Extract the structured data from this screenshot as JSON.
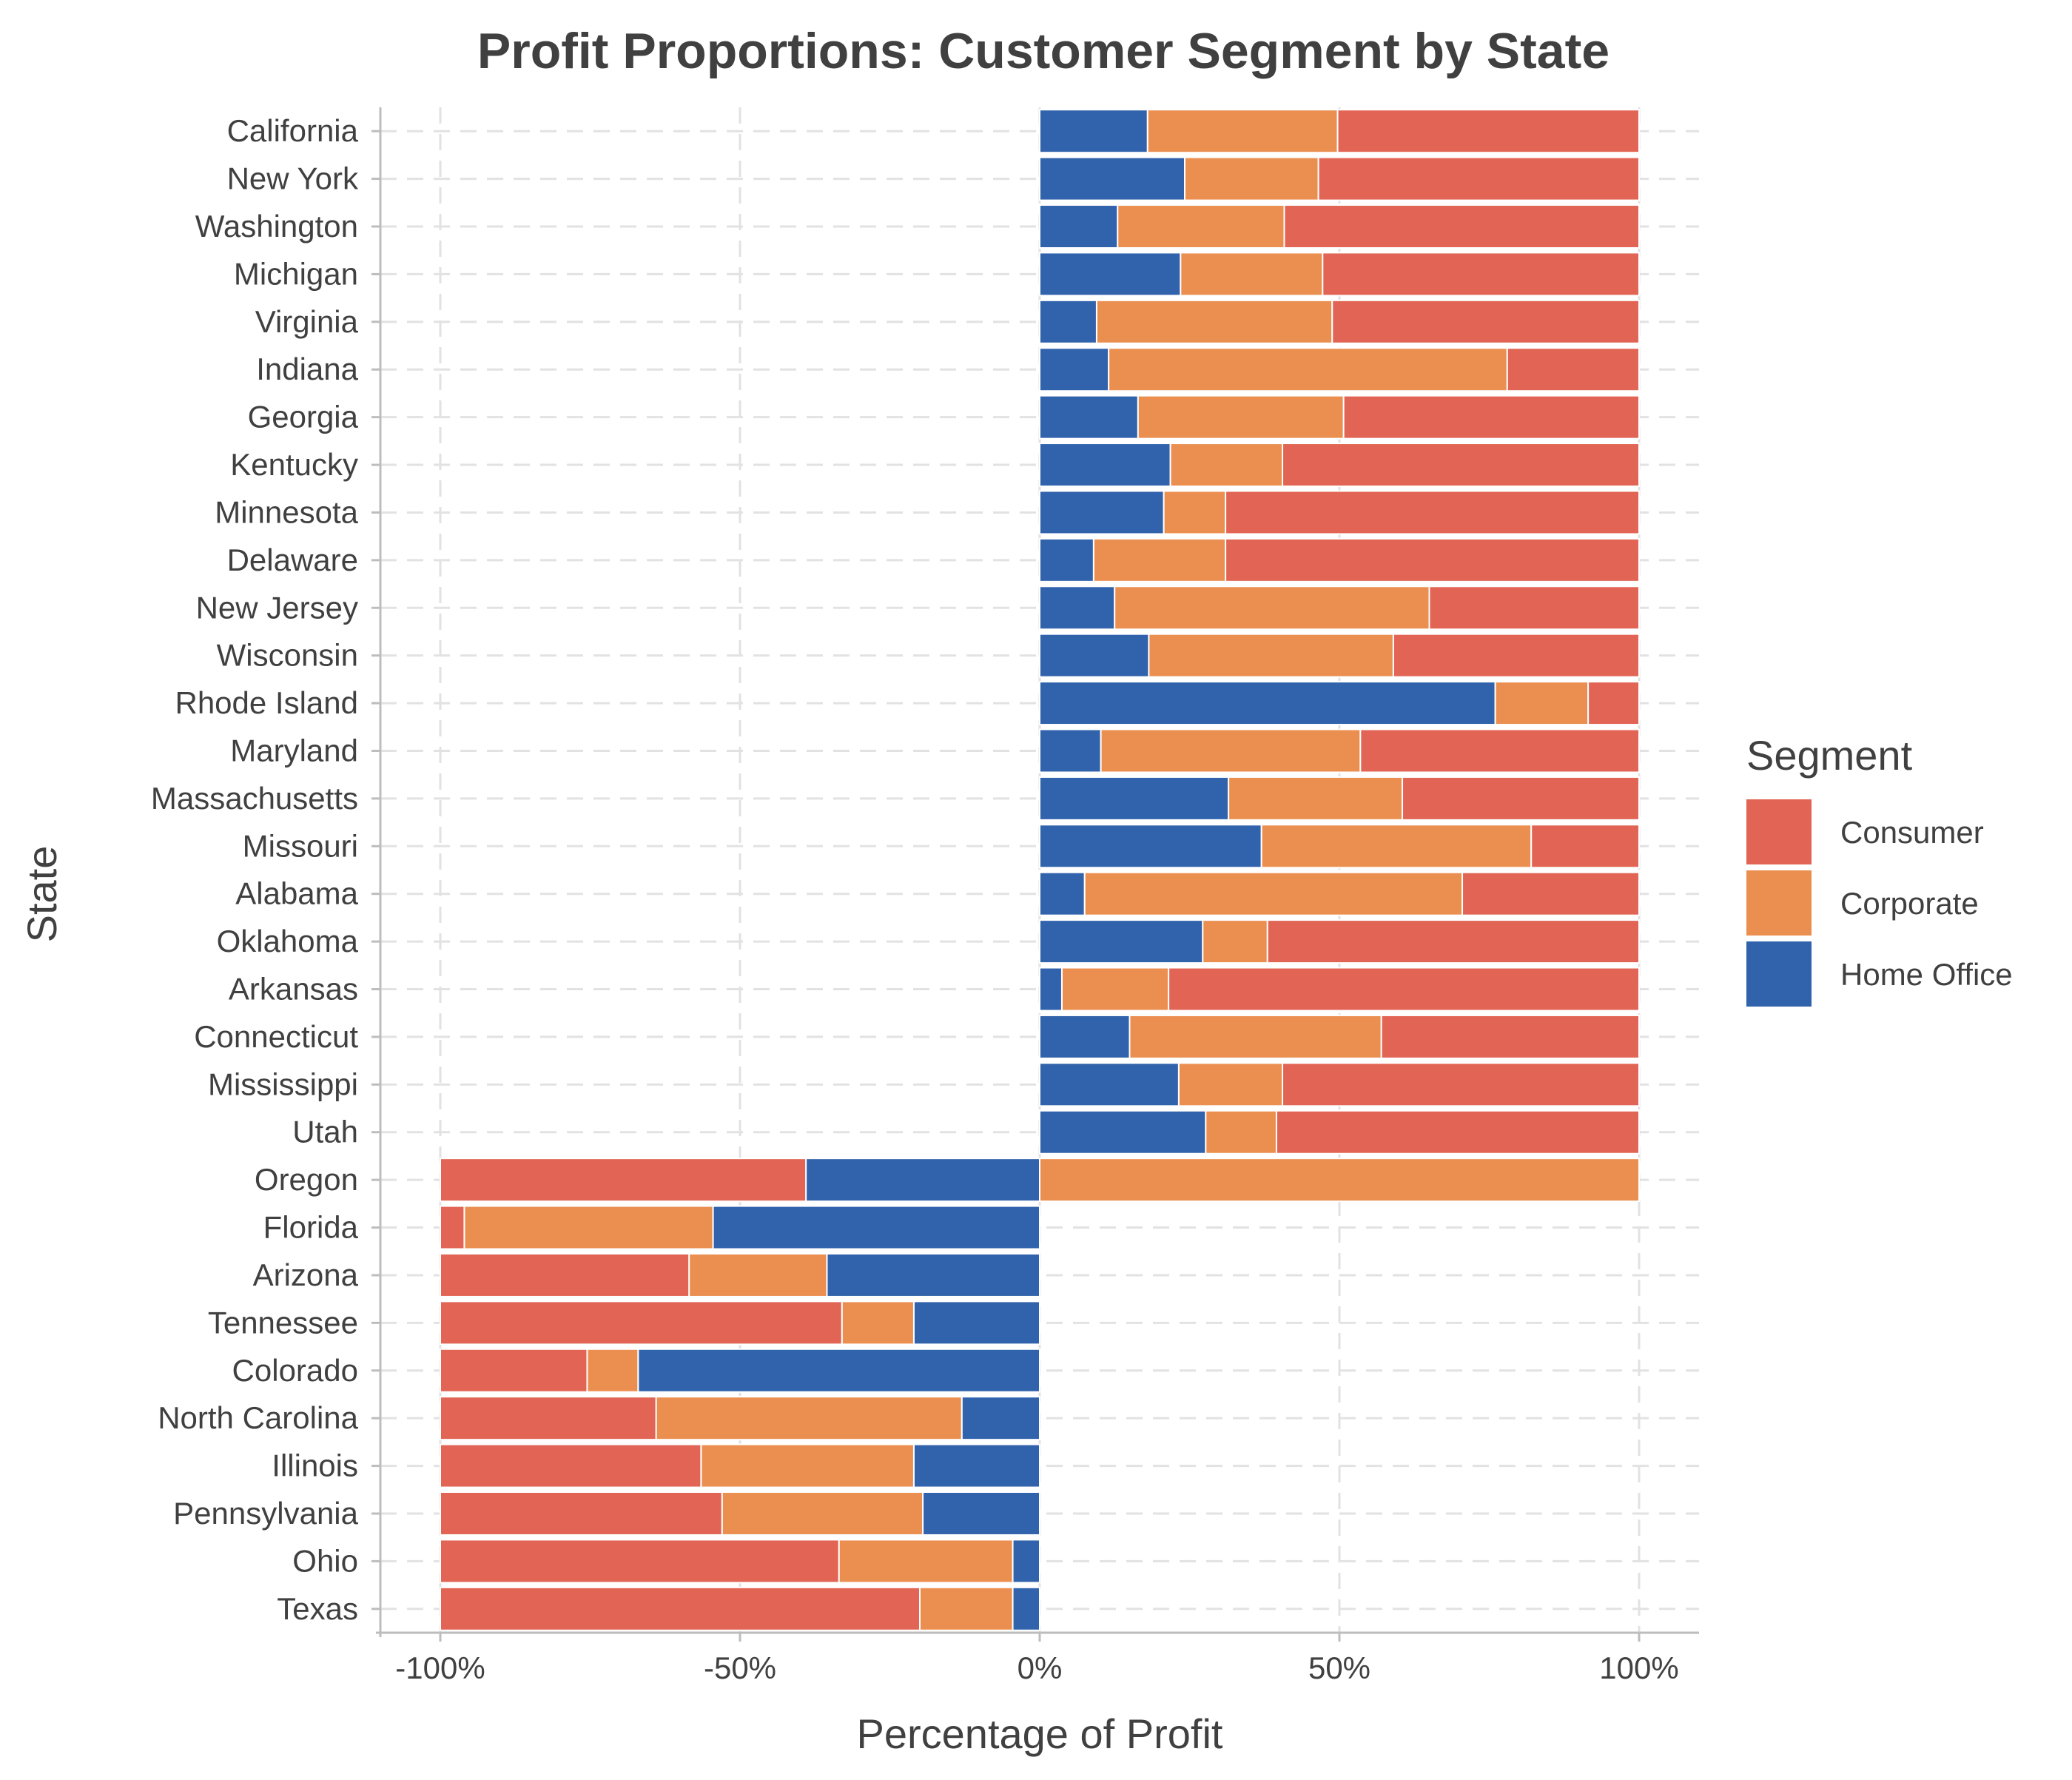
{
  "chart_data": {
    "type": "bar",
    "orientation": "horizontal",
    "stacked": true,
    "title": "Profit Proportions: Customer Segment by State",
    "xlabel": "Percentage of Profit",
    "ylabel": "State",
    "xlim": [
      -100,
      100
    ],
    "x_ticks": [
      -100,
      -50,
      0,
      50,
      100
    ],
    "x_tick_labels": [
      "-100%",
      "-50%",
      "0%",
      "50%",
      "100%"
    ],
    "grid": true,
    "legend_title": "Segment",
    "legend_position": "right",
    "categories": [
      "California",
      "New York",
      "Washington",
      "Michigan",
      "Virginia",
      "Indiana",
      "Georgia",
      "Kentucky",
      "Minnesota",
      "Delaware",
      "New Jersey",
      "Wisconsin",
      "Rhode Island",
      "Maryland",
      "Massachusetts",
      "Missouri",
      "Alabama",
      "Oklahoma",
      "Arkansas",
      "Connecticut",
      "Mississippi",
      "Utah",
      "Oregon",
      "Florida",
      "Arizona",
      "Tennessee",
      "Colorado",
      "North Carolina",
      "Illinois",
      "Pennsylvania",
      "Ohio",
      "Texas"
    ],
    "stack_order": [
      "Home Office",
      "Corporate",
      "Consumer"
    ],
    "series": [
      {
        "name": "Consumer",
        "color": "#E16454",
        "values": [
          50.3,
          53.5,
          59.2,
          52.8,
          51.2,
          22.0,
          49.3,
          59.5,
          69.0,
          69.0,
          35.0,
          41.0,
          8.5,
          46.5,
          39.5,
          18.0,
          29.5,
          62.0,
          78.5,
          43.0,
          59.5,
          60.5,
          -61.0,
          -4.0,
          -41.5,
          -67.0,
          -24.5,
          -36.0,
          -43.5,
          -47.0,
          -66.5,
          -80.0
        ]
      },
      {
        "name": "Corporate",
        "color": "#EB8F50",
        "values": [
          31.7,
          22.3,
          27.8,
          23.7,
          39.3,
          66.5,
          34.3,
          18.7,
          10.3,
          22.0,
          52.5,
          40.8,
          15.5,
          43.3,
          29.0,
          45.0,
          63.0,
          10.8,
          17.8,
          42.0,
          17.3,
          11.8,
          100.0,
          -41.5,
          -23.0,
          -12.0,
          -8.5,
          -51.0,
          -35.5,
          -33.5,
          -29.0,
          -15.5
        ]
      },
      {
        "name": "Home Office",
        "color": "#3162AC",
        "values": [
          18.0,
          24.2,
          13.0,
          23.5,
          9.5,
          11.5,
          16.4,
          21.8,
          20.7,
          9.0,
          12.5,
          18.2,
          76.0,
          10.2,
          31.5,
          37.0,
          7.5,
          27.2,
          3.7,
          15.0,
          23.2,
          27.7,
          -39.0,
          -54.5,
          -35.5,
          -21.0,
          -67.0,
          -13.0,
          -21.0,
          -19.5,
          -4.5,
          -4.5
        ]
      }
    ]
  }
}
